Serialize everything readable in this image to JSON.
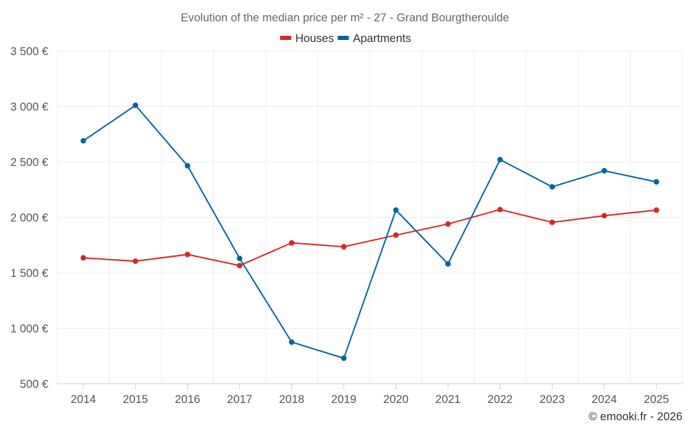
{
  "chart_data": {
    "type": "line",
    "title": "Evolution of the median price per m² - 27 - Grand Bourgtheroulde",
    "categories": [
      "2014",
      "2015",
      "2016",
      "2017",
      "2018",
      "2019",
      "2020",
      "2021",
      "2022",
      "2023",
      "2024",
      "2025"
    ],
    "series": [
      {
        "name": "Houses",
        "color": "#d62728",
        "values": [
          1635,
          1605,
          1665,
          1565,
          1770,
          1735,
          1840,
          1940,
          2070,
          1955,
          2015,
          2065
        ]
      },
      {
        "name": "Apartments",
        "color": "#00669c",
        "values": [
          2690,
          3010,
          2465,
          1630,
          875,
          730,
          2065,
          1580,
          2520,
          2275,
          2420,
          2320
        ]
      }
    ],
    "y_ticks": [
      500,
      1000,
      1500,
      2000,
      2500,
      3000,
      3500
    ],
    "y_tick_labels": [
      "500 €",
      "1 000 €",
      "1 500 €",
      "2 000 €",
      "2 500 €",
      "3 000 €",
      "3 500 €"
    ],
    "ylim": [
      500,
      3500
    ],
    "xlabel": "",
    "ylabel": "",
    "grid": true,
    "legend_position": "top-center"
  },
  "credit": "© emooki.fr - 2026"
}
